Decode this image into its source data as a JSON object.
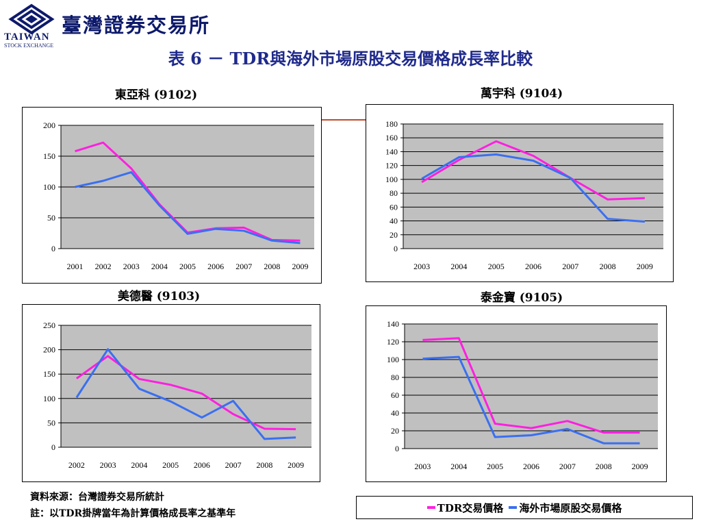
{
  "header": {
    "org_name": "臺灣證券交易所",
    "org_en_line1": "TAIWAN",
    "org_en_line2": "STOCK EXCHANGE",
    "title": "表 6 － TDR與海外市場原股交易價格成長率比較"
  },
  "colors": {
    "tdr": "#ff1fe0",
    "overseas": "#3a6ff0",
    "plot_bg": "#c0c0c0",
    "gridline": "#000000",
    "logo": "#0d1a6b"
  },
  "chart_data": [
    {
      "type": "line",
      "title": "東亞科 (9102)",
      "categories": [
        "2001",
        "2002",
        "2003",
        "2004",
        "2005",
        "2006",
        "2007",
        "2008",
        "2009"
      ],
      "ylim": [
        0,
        200
      ],
      "yticks": [
        0,
        50,
        100,
        150,
        200
      ],
      "grid": true,
      "series": [
        {
          "name": "TDR交易價格",
          "values": [
            158,
            172,
            130,
            72,
            26,
            33,
            34,
            14,
            13
          ]
        },
        {
          "name": "海外市場原股交易價格",
          "values": [
            100,
            110,
            124,
            70,
            24,
            32,
            29,
            13,
            9
          ]
        }
      ]
    },
    {
      "type": "line",
      "title": "萬宇科 (9104)",
      "categories": [
        "2003",
        "2004",
        "2005",
        "2006",
        "2007",
        "2008",
        "2009"
      ],
      "ylim": [
        0,
        180
      ],
      "yticks": [
        0,
        20,
        40,
        60,
        80,
        100,
        120,
        140,
        160,
        180
      ],
      "grid": true,
      "series": [
        {
          "name": "TDR交易價格",
          "values": [
            96,
            128,
            155,
            134,
            102,
            71,
            73
          ]
        },
        {
          "name": "海外市場原股交易價格",
          "values": [
            101,
            132,
            136,
            127,
            102,
            43,
            39
          ]
        }
      ]
    },
    {
      "type": "line",
      "title": "美德醫 (9103)",
      "categories": [
        "2002",
        "2003",
        "2004",
        "2005",
        "2006",
        "2007",
        "2008",
        "2009"
      ],
      "ylim": [
        0,
        250
      ],
      "yticks": [
        0,
        50,
        100,
        150,
        200,
        250
      ],
      "grid": true,
      "series": [
        {
          "name": "TDR交易價格",
          "values": [
            141,
            187,
            140,
            128,
            110,
            68,
            38,
            37
          ]
        },
        {
          "name": "海外市場原股交易價格",
          "values": [
            102,
            201,
            120,
            94,
            61,
            95,
            17,
            20
          ]
        }
      ]
    },
    {
      "type": "line",
      "title": "泰金寶 (9105)",
      "categories": [
        "2003",
        "2004",
        "2005",
        "2006",
        "2007",
        "2008",
        "2009"
      ],
      "ylim": [
        0,
        140
      ],
      "yticks": [
        0,
        20,
        40,
        60,
        80,
        100,
        120,
        140
      ],
      "grid": true,
      "series": [
        {
          "name": "TDR交易價格",
          "values": [
            122,
            124,
            28,
            23,
            31,
            18,
            18
          ]
        },
        {
          "name": "海外市場原股交易價格",
          "values": [
            101,
            103,
            13,
            15,
            22,
            6,
            6
          ]
        }
      ]
    }
  ],
  "footnote": {
    "source": "資料來源：台灣證券交易所統計",
    "note": "註：以TDR掛牌當年為計算價格成長率之基準年"
  },
  "legend": {
    "tdr_label": "TDR交易價格",
    "overseas_label": "海外市場原股交易價格"
  }
}
